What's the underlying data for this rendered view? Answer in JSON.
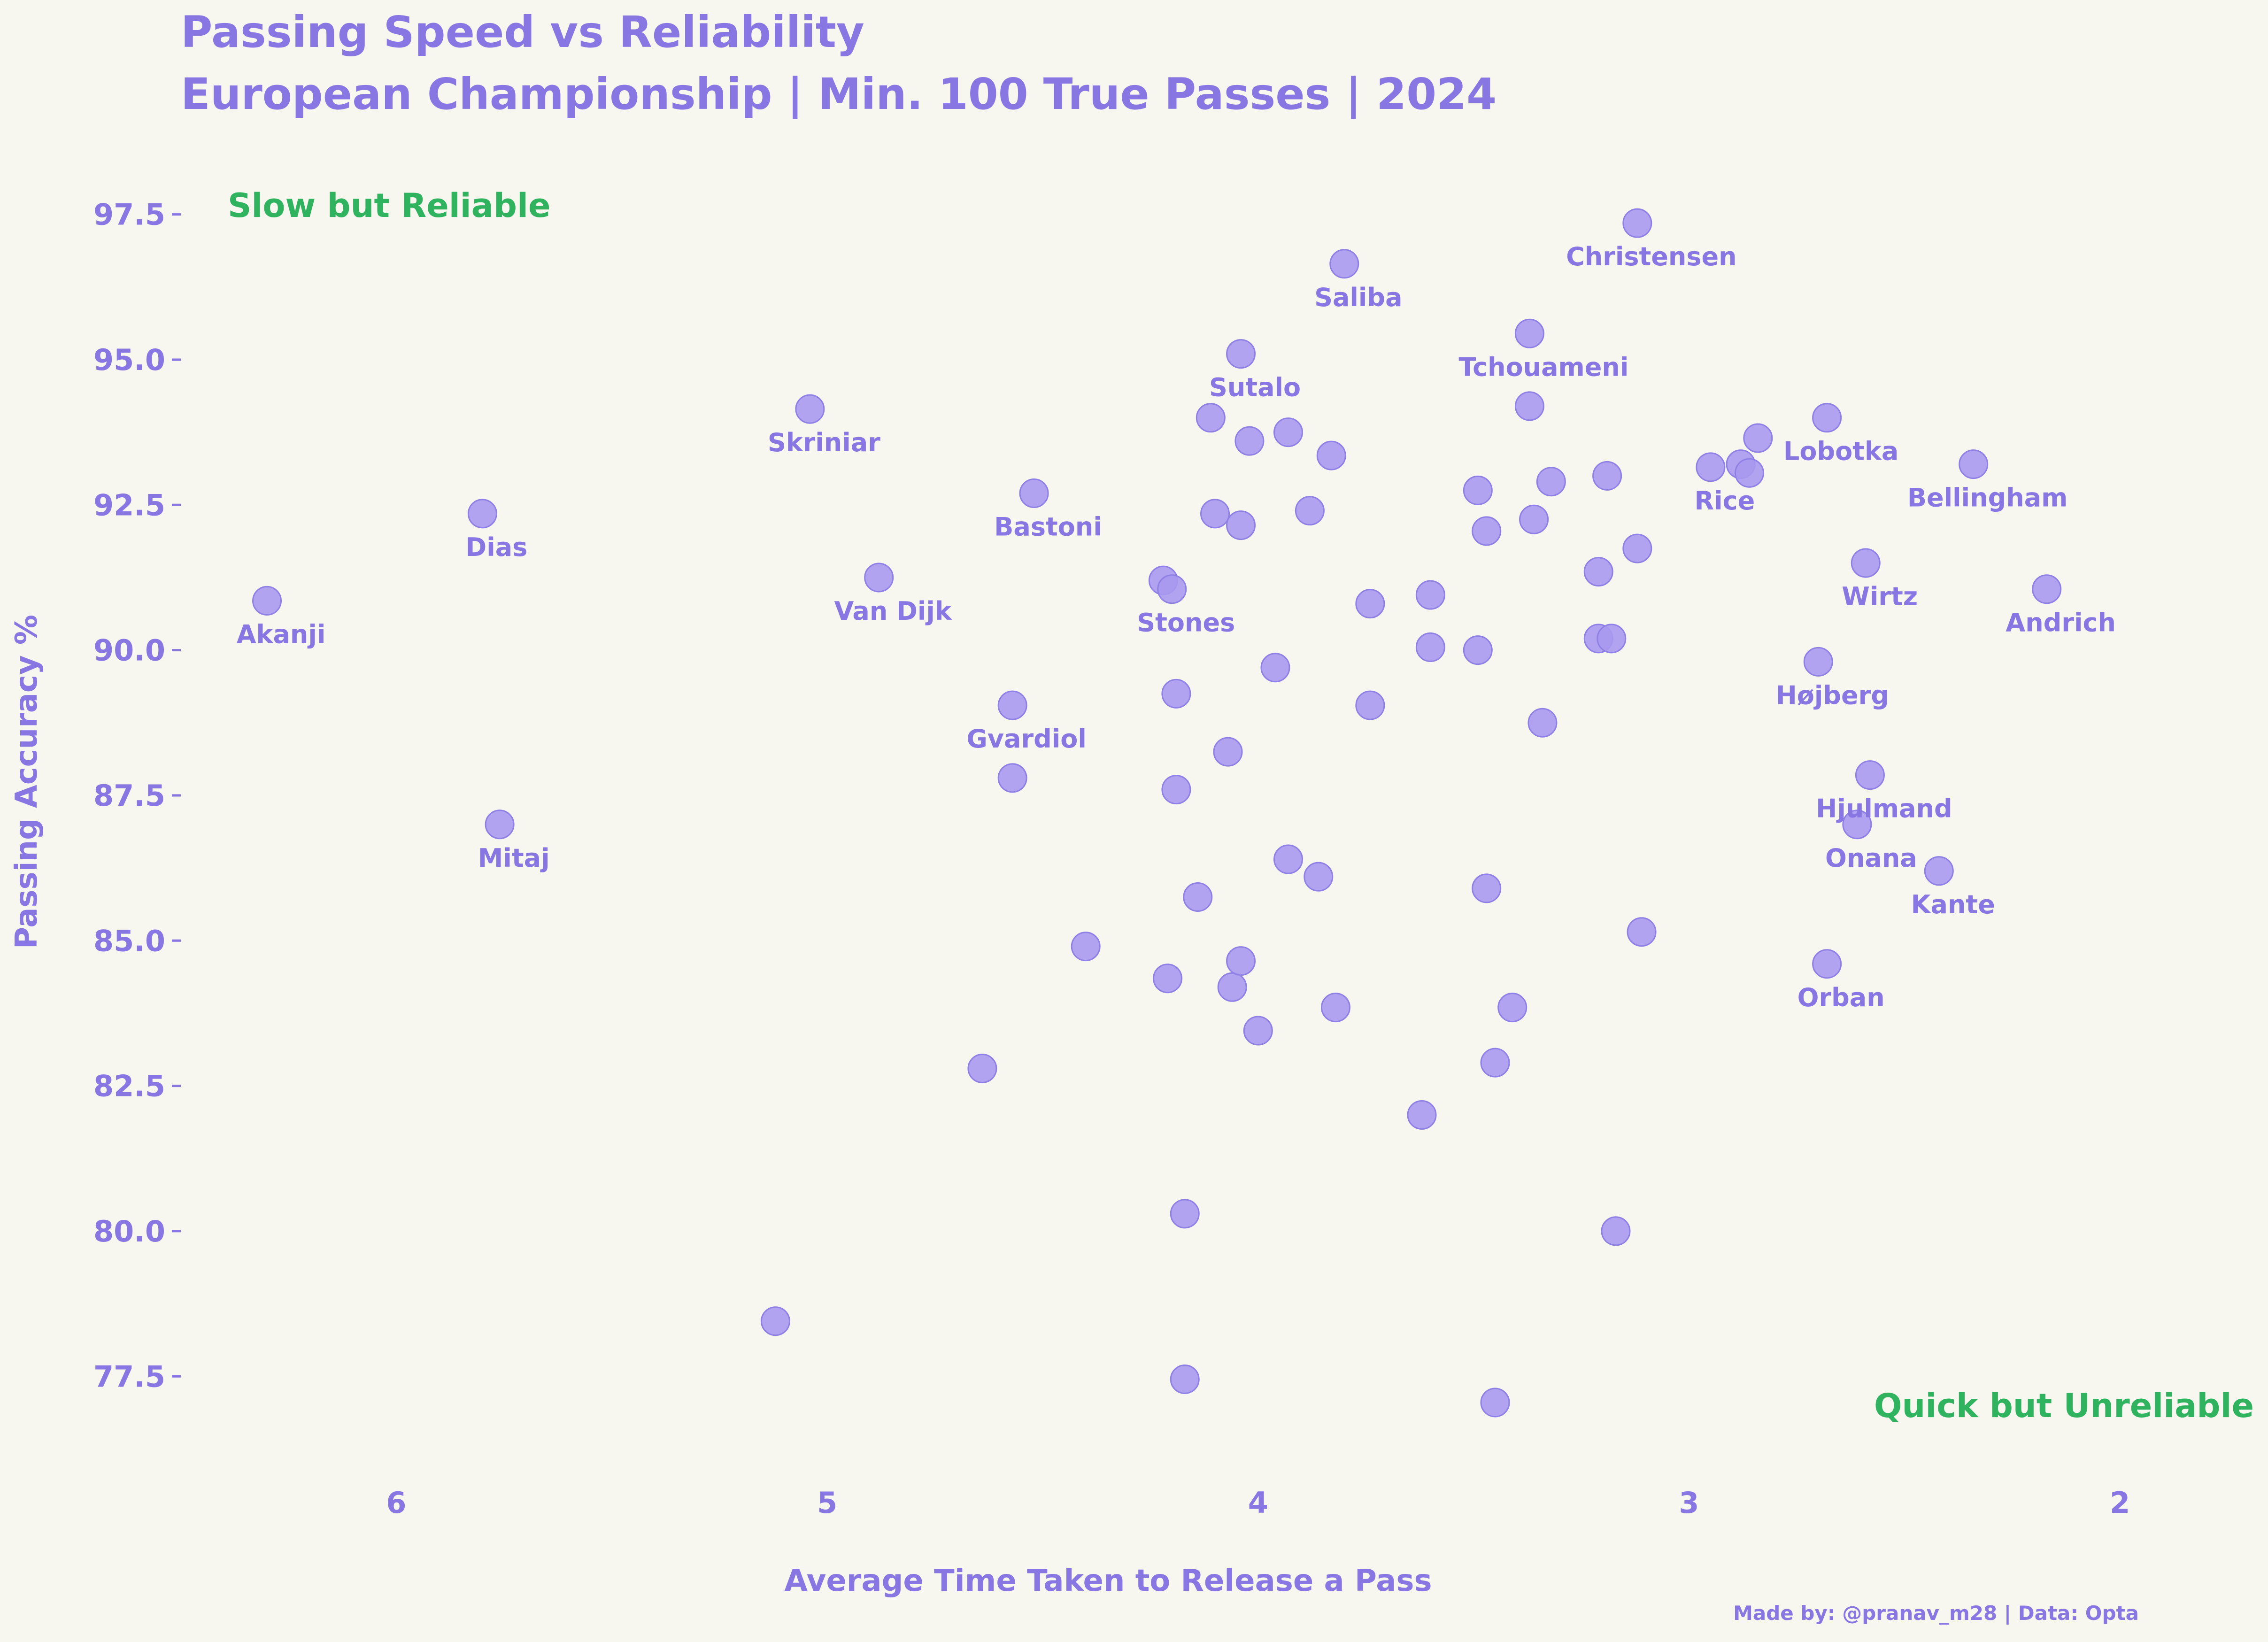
{
  "chart_data": {
    "type": "scatter",
    "title": "Passing Speed vs Reliability",
    "subtitle": "European Championship | Min. 100 True Passes | 2024",
    "xlabel": "Average Time Taken to Release a Pass",
    "ylabel": "Passing Accuracy %",
    "x_inverted": true,
    "xlim": [
      6.5,
      1.7
    ],
    "ylim": [
      76.5,
      98.2
    ],
    "xticks": [
      "6",
      "5",
      "4",
      "3",
      "2"
    ],
    "yticks": [
      "77.5",
      "80.0",
      "82.5",
      "85.0",
      "87.5",
      "90.0",
      "92.5",
      "95.0",
      "97.5"
    ],
    "grid": false,
    "quadrant_labels": {
      "top_left": "Slow but Reliable",
      "bottom_right": "Quick but Unreliable"
    },
    "credit": "Made by: @pranav_m28 | Data: Opta",
    "points": [
      {
        "x": 6.3,
        "y": 90.85,
        "label": "Akanji"
      },
      {
        "x": 5.8,
        "y": 92.35,
        "label": "Dias"
      },
      {
        "x": 5.76,
        "y": 87.0,
        "label": "Mitaj"
      },
      {
        "x": 5.04,
        "y": 94.15,
        "label": "Skriniar"
      },
      {
        "x": 5.12,
        "y": 78.45,
        "label": ""
      },
      {
        "x": 4.88,
        "y": 91.25,
        "label": "Van Dijk"
      },
      {
        "x": 4.64,
        "y": 82.8,
        "label": ""
      },
      {
        "x": 4.57,
        "y": 89.05,
        "label": "Gvardiol"
      },
      {
        "x": 4.57,
        "y": 87.8,
        "label": ""
      },
      {
        "x": 4.52,
        "y": 92.7,
        "label": "Bastoni"
      },
      {
        "x": 4.4,
        "y": 84.9,
        "label": ""
      },
      {
        "x": 4.22,
        "y": 91.2,
        "label": ""
      },
      {
        "x": 4.2,
        "y": 91.05,
        "label": "Stones"
      },
      {
        "x": 4.19,
        "y": 89.25,
        "label": ""
      },
      {
        "x": 4.19,
        "y": 87.6,
        "label": ""
      },
      {
        "x": 4.21,
        "y": 84.35,
        "label": ""
      },
      {
        "x": 4.17,
        "y": 80.3,
        "label": ""
      },
      {
        "x": 4.17,
        "y": 77.45,
        "label": ""
      },
      {
        "x": 4.14,
        "y": 85.75,
        "label": ""
      },
      {
        "x": 4.11,
        "y": 94.0,
        "label": ""
      },
      {
        "x": 4.1,
        "y": 92.35,
        "label": ""
      },
      {
        "x": 4.07,
        "y": 88.25,
        "label": ""
      },
      {
        "x": 4.06,
        "y": 84.2,
        "label": ""
      },
      {
        "x": 4.04,
        "y": 95.1,
        "label": "Sutalo"
      },
      {
        "x": 4.04,
        "y": 92.15,
        "label": ""
      },
      {
        "x": 4.04,
        "y": 84.65,
        "label": ""
      },
      {
        "x": 4.02,
        "y": 93.6,
        "label": ""
      },
      {
        "x": 4.0,
        "y": 83.45,
        "label": ""
      },
      {
        "x": 3.96,
        "y": 89.7,
        "label": ""
      },
      {
        "x": 3.93,
        "y": 93.75,
        "label": ""
      },
      {
        "x": 3.93,
        "y": 86.4,
        "label": ""
      },
      {
        "x": 3.88,
        "y": 92.4,
        "label": ""
      },
      {
        "x": 3.86,
        "y": 86.1,
        "label": ""
      },
      {
        "x": 3.83,
        "y": 93.35,
        "label": ""
      },
      {
        "x": 3.82,
        "y": 83.85,
        "label": ""
      },
      {
        "x": 3.8,
        "y": 96.65,
        "label": "Saliba"
      },
      {
        "x": 3.74,
        "y": 90.8,
        "label": ""
      },
      {
        "x": 3.74,
        "y": 89.05,
        "label": ""
      },
      {
        "x": 3.62,
        "y": 82.0,
        "label": ""
      },
      {
        "x": 3.6,
        "y": 90.95,
        "label": ""
      },
      {
        "x": 3.6,
        "y": 90.05,
        "label": ""
      },
      {
        "x": 3.49,
        "y": 92.75,
        "label": ""
      },
      {
        "x": 3.49,
        "y": 90.0,
        "label": ""
      },
      {
        "x": 3.47,
        "y": 92.05,
        "label": ""
      },
      {
        "x": 3.47,
        "y": 85.9,
        "label": ""
      },
      {
        "x": 3.45,
        "y": 82.9,
        "label": ""
      },
      {
        "x": 3.45,
        "y": 77.05,
        "label": ""
      },
      {
        "x": 3.41,
        "y": 83.85,
        "label": ""
      },
      {
        "x": 3.37,
        "y": 95.45,
        "label": "Tchouameni"
      },
      {
        "x": 3.37,
        "y": 94.2,
        "label": ""
      },
      {
        "x": 3.36,
        "y": 92.25,
        "label": ""
      },
      {
        "x": 3.34,
        "y": 88.75,
        "label": ""
      },
      {
        "x": 3.32,
        "y": 92.9,
        "label": ""
      },
      {
        "x": 3.21,
        "y": 91.35,
        "label": ""
      },
      {
        "x": 3.21,
        "y": 90.2,
        "label": ""
      },
      {
        "x": 3.19,
        "y": 93.0,
        "label": ""
      },
      {
        "x": 3.18,
        "y": 90.2,
        "label": ""
      },
      {
        "x": 3.17,
        "y": 80.0,
        "label": ""
      },
      {
        "x": 3.12,
        "y": 97.35,
        "label": "Christensen"
      },
      {
        "x": 3.12,
        "y": 91.75,
        "label": ""
      },
      {
        "x": 3.11,
        "y": 85.15,
        "label": ""
      },
      {
        "x": 2.95,
        "y": 93.15,
        "label": "Rice"
      },
      {
        "x": 2.88,
        "y": 93.2,
        "label": ""
      },
      {
        "x": 2.86,
        "y": 93.05,
        "label": ""
      },
      {
        "x": 2.84,
        "y": 93.65,
        "label": ""
      },
      {
        "x": 2.7,
        "y": 89.8,
        "label": "Højberg"
      },
      {
        "x": 2.68,
        "y": 94.0,
        "label": "Lobotka"
      },
      {
        "x": 2.68,
        "y": 84.6,
        "label": "Orban"
      },
      {
        "x": 2.61,
        "y": 87.0,
        "label": "Onana"
      },
      {
        "x": 2.59,
        "y": 91.5,
        "label": "Wirtz"
      },
      {
        "x": 2.58,
        "y": 87.85,
        "label": "Hjulmand"
      },
      {
        "x": 2.42,
        "y": 86.2,
        "label": "Kante"
      },
      {
        "x": 2.34,
        "y": 93.2,
        "label": "Bellingham"
      },
      {
        "x": 2.17,
        "y": 91.05,
        "label": "Andrich"
      }
    ]
  }
}
